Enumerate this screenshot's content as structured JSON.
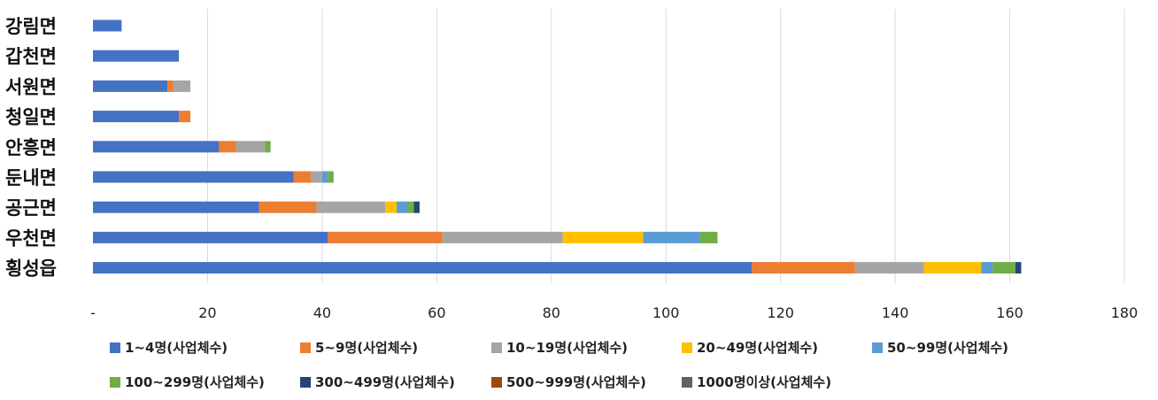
{
  "chart_data": {
    "type": "bar",
    "orientation": "horizontal",
    "stacked": true,
    "categories": [
      "횡성읍",
      "우천면",
      "공근면",
      "둔내면",
      "안흥면",
      "청일면",
      "서원면",
      "갑천면",
      "강림면"
    ],
    "series": [
      {
        "name": "1~4명(사업체수)",
        "color": "#4472C4",
        "values": [
          115,
          41,
          29,
          35,
          22,
          15,
          13,
          15,
          5
        ]
      },
      {
        "name": "5~9명(사업체수)",
        "color": "#ED7D31",
        "values": [
          18,
          20,
          10,
          3,
          3,
          2,
          1,
          0,
          0
        ]
      },
      {
        "name": "10~19명(사업체수)",
        "color": "#A5A5A5",
        "values": [
          12,
          21,
          12,
          2,
          5,
          0,
          3,
          0,
          0
        ]
      },
      {
        "name": "20~49명(사업체수)",
        "color": "#FFC000",
        "values": [
          10,
          14,
          2,
          0,
          0,
          0,
          0,
          0,
          0
        ]
      },
      {
        "name": "50~99명(사업체수)",
        "color": "#5B9BD5",
        "values": [
          2,
          10,
          2,
          1,
          0,
          0,
          0,
          0,
          0
        ]
      },
      {
        "name": "100~299명(사업체수)",
        "color": "#70AD47",
        "values": [
          4,
          3,
          1,
          1,
          1,
          0,
          0,
          0,
          0
        ]
      },
      {
        "name": "300~499명(사업체수)",
        "color": "#264478",
        "values": [
          1,
          0,
          1,
          0,
          0,
          0,
          0,
          0,
          0
        ]
      },
      {
        "name": "500~999명(사업체수)",
        "color": "#9E480E",
        "values": [
          0,
          0,
          0,
          0,
          0,
          0,
          0,
          0,
          0
        ]
      },
      {
        "name": "1000명이상(사업체수)",
        "color": "#636363",
        "values": [
          0,
          0,
          0,
          0,
          0,
          0,
          0,
          0,
          0
        ]
      }
    ],
    "xlim": [
      0,
      180
    ],
    "xticks": [
      0,
      20,
      40,
      60,
      80,
      100,
      120,
      140,
      160,
      180
    ],
    "xtick_labels": [
      "-",
      "20",
      "40",
      "60",
      "80",
      "100",
      "120",
      "140",
      "160",
      "180"
    ],
    "grid": "vertical",
    "legend_position": "bottom"
  }
}
